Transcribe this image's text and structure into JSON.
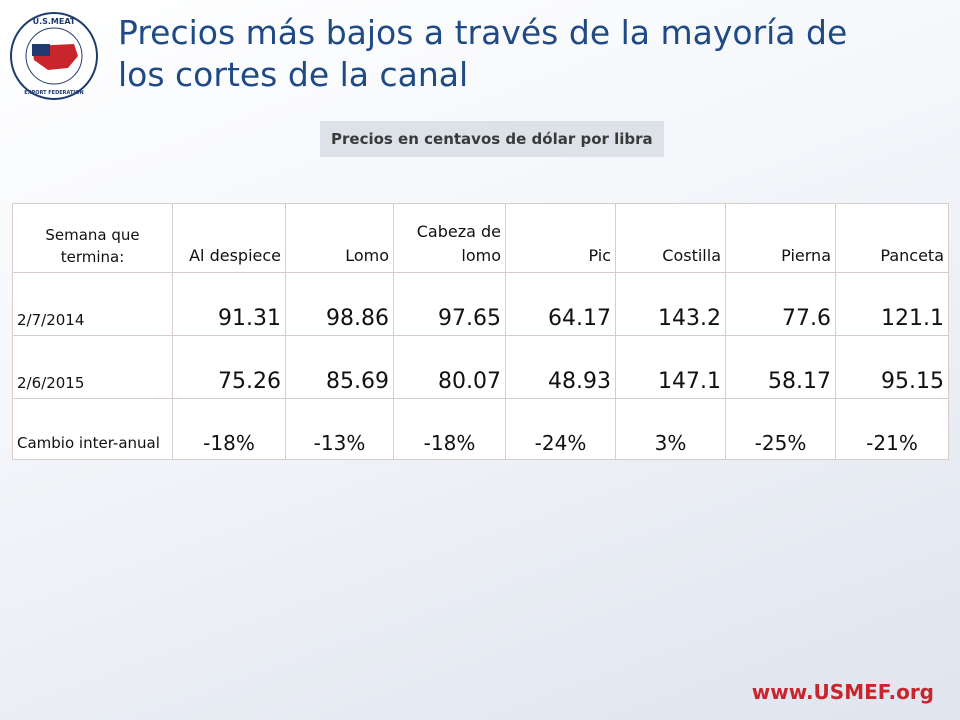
{
  "logo": {
    "top": "U.S.MEAT",
    "bottom": "EXPORT FEDERATION"
  },
  "header": {
    "title": "Precios más bajos a través de la mayoría de los cortes de la canal",
    "subtitle": "Precios en centavos de dólar por libra"
  },
  "table": {
    "columns": [
      "Semana que termina:",
      "Al despiece",
      "Lomo",
      "Cabeza de lomo",
      "Pic",
      "Costilla",
      "Pierna",
      "Panceta"
    ],
    "rows": [
      [
        "2/7/2014",
        "91.31",
        "98.86",
        "97.65",
        "64.17",
        "143.2",
        "77.6",
        "121.1"
      ],
      [
        "2/6/2015",
        "75.26",
        "85.69",
        "80.07",
        "48.93",
        "147.1",
        "58.17",
        "95.15"
      ],
      [
        "Cambio inter-anual",
        "-18%",
        "-13%",
        "-18%",
        "-24%",
        "3%",
        "-25%",
        "-21%"
      ]
    ]
  },
  "footer": {
    "url": "www.USMEF.org"
  }
}
